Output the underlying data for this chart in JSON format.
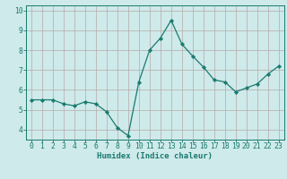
{
  "x": [
    0,
    1,
    2,
    3,
    4,
    5,
    6,
    7,
    8,
    9,
    10,
    11,
    12,
    13,
    14,
    15,
    16,
    17,
    18,
    19,
    20,
    21,
    22,
    23
  ],
  "y": [
    5.5,
    5.5,
    5.5,
    5.3,
    5.2,
    5.4,
    5.3,
    4.9,
    4.1,
    3.7,
    6.4,
    8.0,
    8.6,
    9.5,
    8.3,
    7.7,
    7.15,
    6.5,
    6.4,
    5.9,
    6.1,
    6.3,
    6.8,
    7.2
  ],
  "line_color": "#1a7a6e",
  "marker": "D",
  "marker_size": 2.2,
  "bg_color": "#ceeaea",
  "grid_color": "#b8a8a8",
  "axis_color": "#1a7a6e",
  "tick_color": "#1a7a6e",
  "xlabel": "Humidex (Indice chaleur)",
  "xlim": [
    -0.5,
    23.5
  ],
  "ylim": [
    3.5,
    10.25
  ],
  "yticks": [
    4,
    5,
    6,
    7,
    8,
    9,
    10
  ],
  "xticks": [
    0,
    1,
    2,
    3,
    4,
    5,
    6,
    7,
    8,
    9,
    10,
    11,
    12,
    13,
    14,
    15,
    16,
    17,
    18,
    19,
    20,
    21,
    22,
    23
  ],
  "label_fontsize": 6.5,
  "tick_fontsize": 5.8
}
